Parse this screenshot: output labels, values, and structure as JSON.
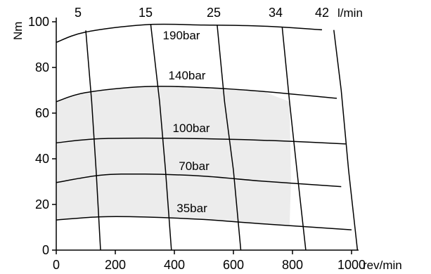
{
  "chart_data": {
    "type": "line",
    "title": "",
    "xlabel": "rev/min",
    "ylabel": "Nm",
    "top_axis_label": "l/min",
    "xlim": [
      0,
      1000
    ],
    "ylim": [
      0,
      100
    ],
    "x_ticks": [
      0,
      200,
      400,
      600,
      800,
      1000
    ],
    "y_ticks": [
      0,
      20,
      40,
      60,
      80,
      100
    ],
    "grid": false,
    "shaded_region_color": "#ececec",
    "pressure_curves": [
      {
        "label": "190bar",
        "points": [
          [
            0,
            91
          ],
          [
            100,
            95.5
          ],
          [
            300,
            98.7
          ],
          [
            500,
            98.6
          ],
          [
            700,
            98.1
          ],
          [
            900,
            96.5
          ]
        ]
      },
      {
        "label": "140bar",
        "points": [
          [
            0,
            65
          ],
          [
            100,
            69
          ],
          [
            300,
            71.6
          ],
          [
            500,
            71.2
          ],
          [
            700,
            69.5
          ],
          [
            950,
            66.5
          ]
        ]
      },
      {
        "label": "100bar",
        "points": [
          [
            0,
            47
          ],
          [
            150,
            48.8
          ],
          [
            400,
            49
          ],
          [
            600,
            48.5
          ],
          [
            800,
            47.6
          ],
          [
            980,
            46.5
          ]
        ]
      },
      {
        "label": "70bar",
        "points": [
          [
            0,
            29.6
          ],
          [
            150,
            32.8
          ],
          [
            300,
            33.3
          ],
          [
            500,
            32.4
          ],
          [
            700,
            30.2
          ],
          [
            965,
            27.8
          ]
        ]
      },
      {
        "label": "35bar",
        "points": [
          [
            0,
            13.2
          ],
          [
            150,
            14.6
          ],
          [
            300,
            14.5
          ],
          [
            500,
            13.4
          ],
          [
            700,
            11.5
          ],
          [
            1000,
            8.9
          ]
        ]
      }
    ],
    "flow_lines": [
      {
        "label": "5",
        "points": [
          [
            100,
            96.2
          ],
          [
            120,
            65
          ],
          [
            135,
            35
          ],
          [
            150,
            0
          ]
        ]
      },
      {
        "label": "15",
        "points": [
          [
            320,
            98.8
          ],
          [
            350,
            65
          ],
          [
            370,
            35
          ],
          [
            390,
            0
          ]
        ]
      },
      {
        "label": "25",
        "points": [
          [
            545,
            98.5
          ],
          [
            570,
            65
          ],
          [
            600,
            35
          ],
          [
            625,
            0
          ]
        ]
      },
      {
        "label": "34",
        "points": [
          [
            765,
            97.8
          ],
          [
            790,
            65
          ],
          [
            815,
            35
          ],
          [
            845,
            0
          ]
        ]
      },
      {
        "label": "42",
        "points": [
          [
            940,
            96.4
          ],
          [
            965,
            70
          ],
          [
            990,
            35
          ],
          [
            1020,
            0
          ]
        ]
      }
    ],
    "shaded_region": {
      "points": [
        [
          0,
          0
        ],
        [
          0,
          13.2
        ],
        [
          150,
          14.6
        ],
        [
          300,
          14.5
        ],
        [
          500,
          13.4
        ],
        [
          700,
          11.5
        ],
        [
          790,
          10.6
        ],
        [
          795,
          30
        ],
        [
          790,
          65
        ],
        [
          700,
          69.5
        ],
        [
          500,
          71.2
        ],
        [
          300,
          71.6
        ],
        [
          100,
          69
        ],
        [
          0,
          65
        ],
        [
          0,
          0
        ]
      ]
    }
  }
}
